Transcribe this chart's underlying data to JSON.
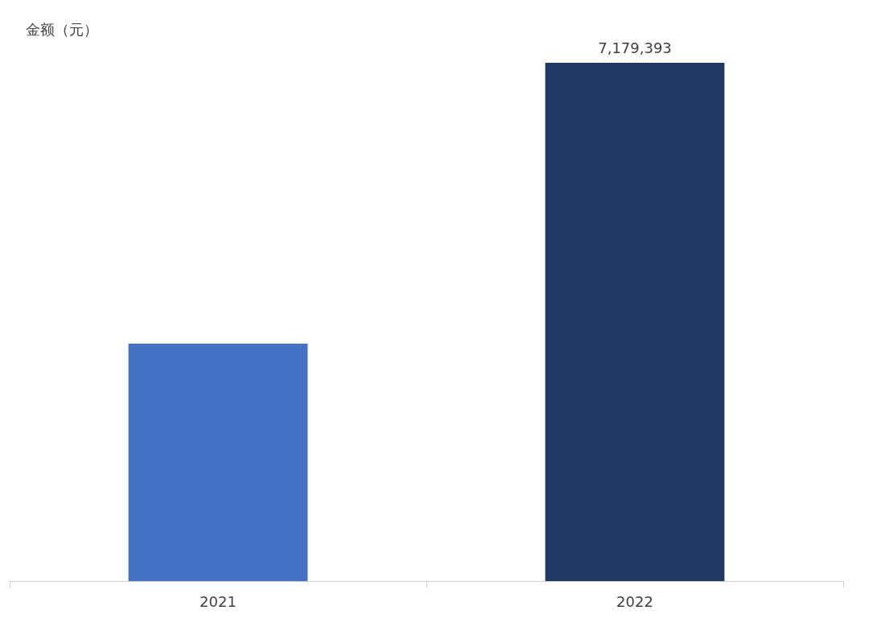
{
  "chart_data": {
    "type": "bar",
    "ylabel": "金额（元）",
    "categories": [
      "2021",
      "2022"
    ],
    "values": [
      3290000,
      7179393
    ],
    "colors": [
      "#4472c4",
      "#203864"
    ],
    "value_labels": [
      null,
      "7,179,393"
    ]
  }
}
